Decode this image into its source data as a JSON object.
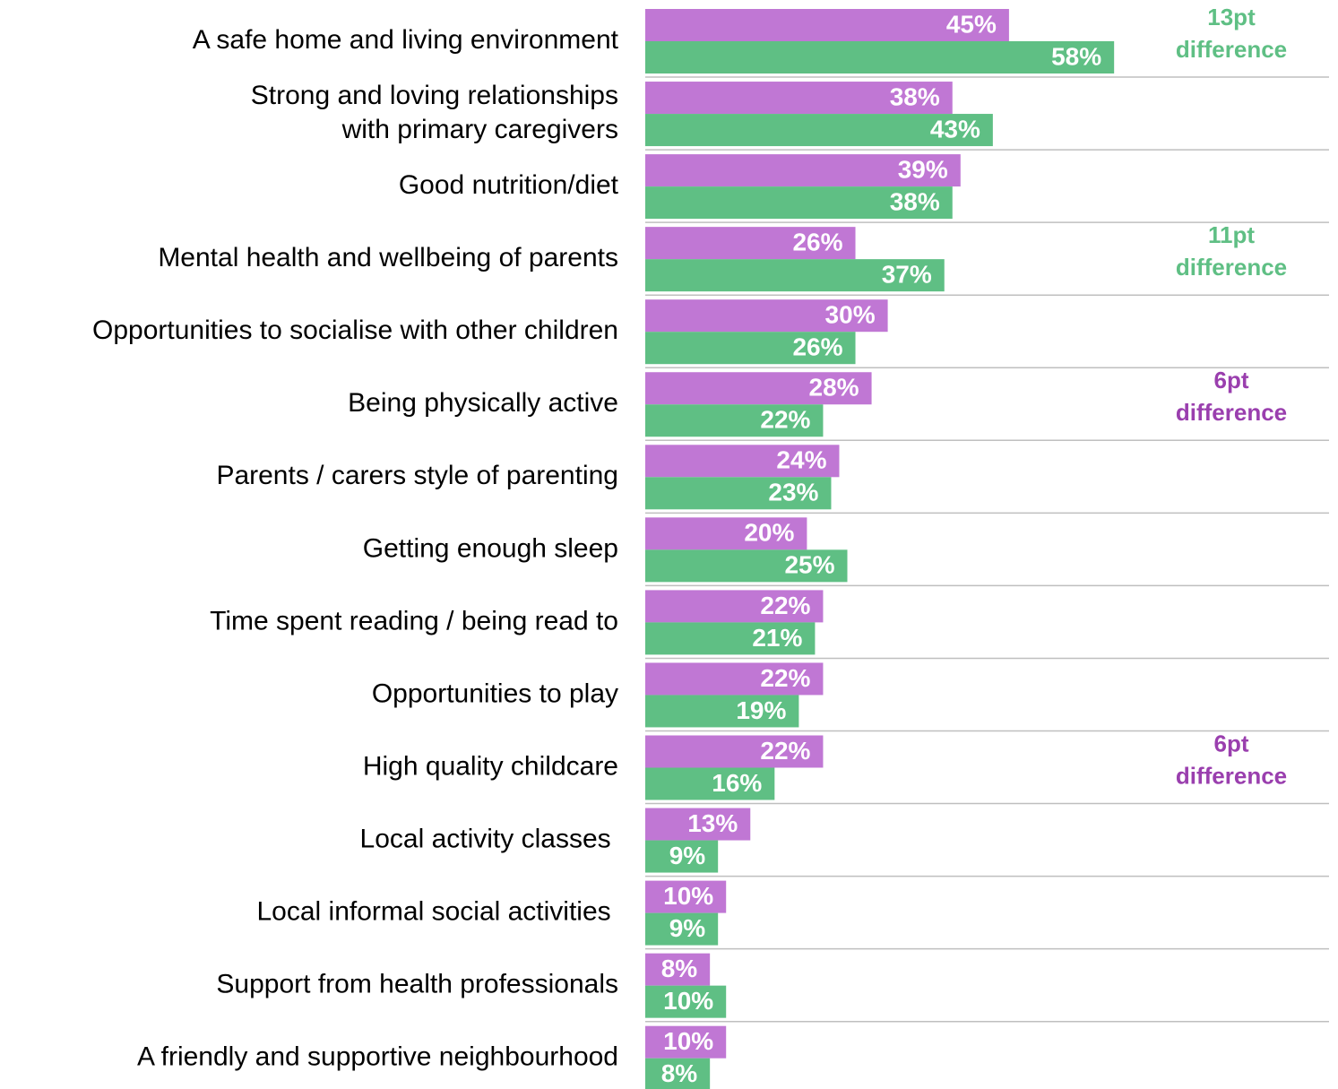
{
  "chart_data": {
    "type": "grouped-hbar",
    "categories": [
      "A safe home and living environment",
      "Strong and loving relationships\nwith primary caregivers",
      "Good nutrition/diet",
      "Mental health and wellbeing of parents",
      "Opportunities to socialise with other children",
      "Being physically active",
      "Parents / carers style of parenting",
      "Getting enough sleep",
      "Time spent reading / being read to",
      "Opportunities to play",
      "High quality childcare",
      "Local activity classes ",
      "Local informal social activities ",
      "Support from health professionals",
      "A friendly and supportive neighbourhood"
    ],
    "series": [
      {
        "color": "#c077d4",
        "values": [
          45,
          38,
          39,
          26,
          30,
          28,
          24,
          20,
          22,
          22,
          22,
          13,
          10,
          8,
          10
        ],
        "value_labels": [
          "45%",
          "38%",
          "39%",
          "26%",
          "30%",
          "28%",
          "24%",
          "20%",
          "22%",
          "22%",
          "22%",
          "13%",
          "10%",
          "8%",
          "10%"
        ]
      },
      {
        "color": "#5fbf84",
        "values": [
          58,
          43,
          38,
          37,
          26,
          22,
          23,
          25,
          21,
          19,
          16,
          9,
          9,
          10,
          8
        ],
        "value_labels": [
          "58%",
          "43%",
          "38%",
          "37%",
          "26%",
          "22%",
          "23%",
          "25%",
          "21%",
          "19%",
          "16%",
          "9%",
          "9%",
          "10%",
          "8%"
        ]
      }
    ],
    "xlim": [
      0,
      85
    ],
    "annotations": [
      {
        "lines": [
          "13pt",
          "difference"
        ],
        "color": "#5fbf84"
      },
      null,
      null,
      {
        "lines": [
          "11pt",
          "difference"
        ],
        "color": "#5fbf84"
      },
      null,
      {
        "lines": [
          "6pt",
          "difference"
        ],
        "color": "#9a3fae"
      },
      null,
      null,
      null,
      null,
      {
        "lines": [
          "6pt",
          "difference"
        ],
        "color": "#9a3fae"
      },
      null,
      null,
      null,
      null
    ]
  }
}
